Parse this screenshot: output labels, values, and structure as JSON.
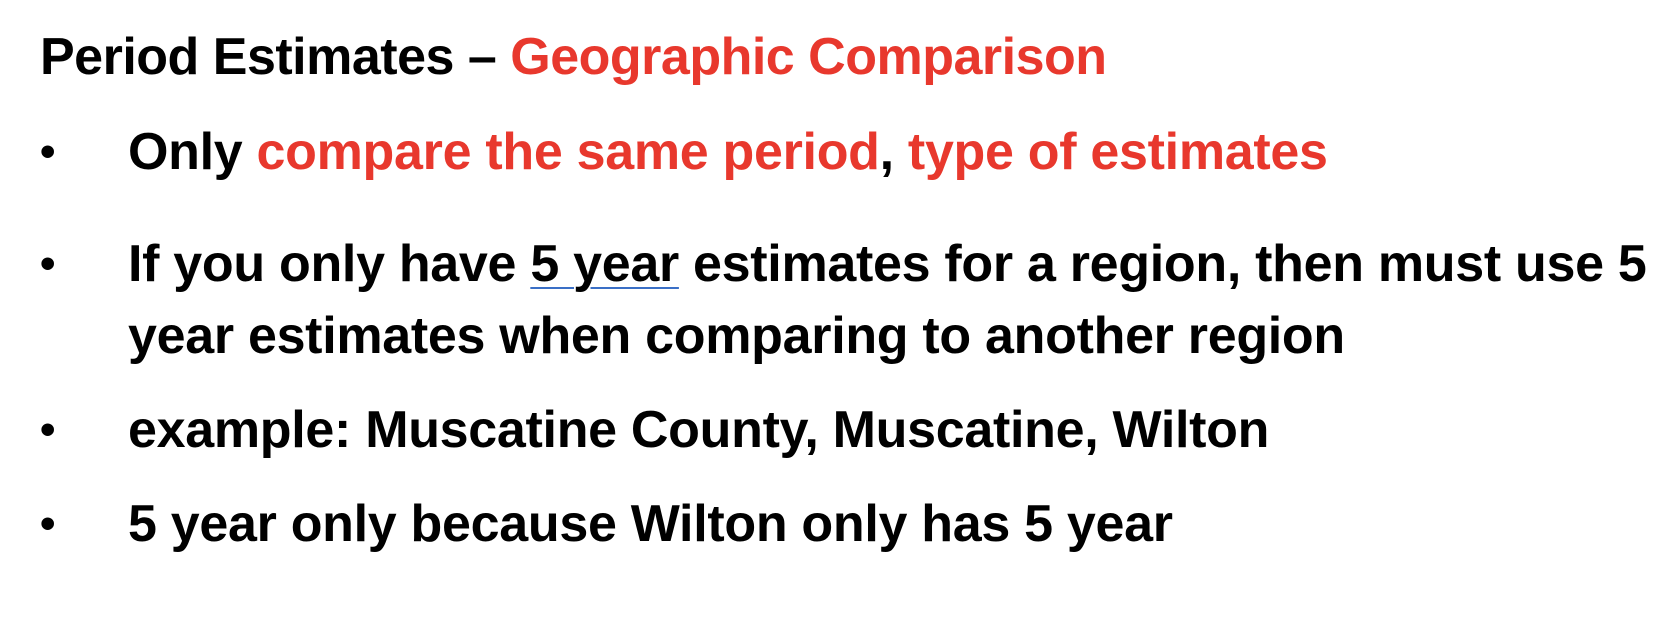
{
  "title": {
    "part1": "Period Estimates – ",
    "part2": "Geographic Comparison",
    "accent_color": "#e8382d"
  },
  "bullets": [
    {
      "symbol": "•",
      "segments": [
        "Only ",
        "compare the same period",
        ", ",
        "type of estimates"
      ]
    },
    {
      "symbol": "•",
      "segments": [
        "If you only have ",
        "5 year",
        " estimates for a region, then must use 5 year estimates when comparing to another region"
      ]
    },
    {
      "symbol": "•",
      "text": "example: Muscatine County, Muscatine, Wilton"
    },
    {
      "symbol": "•",
      "text": "5 year only because Wilton only has 5 year"
    }
  ]
}
